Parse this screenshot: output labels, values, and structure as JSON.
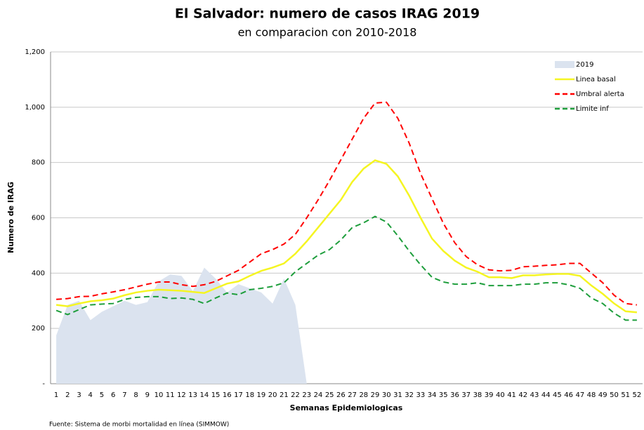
{
  "chart_data": {
    "type": "line",
    "title": "El Salvador: numero de casos IRAG 2019",
    "subtitle": "en comparacion con 2010-2018",
    "x_label": "Semanas Epidemiologicas",
    "y_label": "Numero de IRAG",
    "source": "Fuente: Sistema de morbi mortalidad en línea (SIMMOW)",
    "categories": [
      "1",
      "2",
      "3",
      "4",
      "5",
      "6",
      "7",
      "8",
      "9",
      "10",
      "11",
      "12",
      "13",
      "14",
      "15",
      "16",
      "17",
      "18",
      "19",
      "20",
      "21",
      "22",
      "23",
      "24",
      "25",
      "26",
      "27",
      "28",
      "29",
      "30",
      "31",
      "32",
      "33",
      "34",
      "35",
      "36",
      "37",
      "38",
      "39",
      "40",
      "41",
      "42",
      "43",
      "44",
      "45",
      "46",
      "47",
      "48",
      "49",
      "50",
      "51",
      "52"
    ],
    "ylim": [
      0,
      1200
    ],
    "yticks": [
      {
        "value": 0,
        "label": "-"
      },
      200,
      400,
      600,
      800,
      {
        "value": 1000,
        "label": "1,000"
      },
      {
        "value": 1200,
        "label": "1,200"
      }
    ],
    "grid": true,
    "legend": "upper right",
    "series": [
      {
        "name": "2019",
        "color": "#dbe3ef",
        "style": "area",
        "values": [
          175,
          285,
          300,
          230,
          260,
          280,
          300,
          285,
          295,
          370,
          395,
          390,
          335,
          420,
          380,
          330,
          360,
          345,
          330,
          290,
          380,
          285,
          0,
          null,
          null,
          null,
          null,
          null,
          null,
          null,
          null,
          null,
          null,
          null,
          null,
          null,
          null,
          null,
          null,
          null,
          null,
          null,
          null,
          null,
          null,
          null,
          null,
          null,
          null,
          null,
          null,
          null
        ]
      },
      {
        "name": "Linea basal",
        "color": "#f5f522",
        "style": "solid",
        "values": [
          285,
          280,
          290,
          298,
          302,
          308,
          320,
          330,
          336,
          340,
          338,
          336,
          332,
          328,
          345,
          362,
          370,
          390,
          408,
          420,
          435,
          470,
          515,
          565,
          615,
          665,
          730,
          778,
          808,
          795,
          750,
          680,
          600,
          525,
          480,
          445,
          420,
          405,
          385,
          385,
          382,
          392,
          392,
          395,
          397,
          397,
          390,
          355,
          325,
          290,
          262,
          258
        ]
      },
      {
        "name": "Umbral alerta",
        "color": "#ff0000",
        "style": "dashed",
        "values": [
          305,
          308,
          315,
          316,
          325,
          332,
          340,
          350,
          360,
          368,
          368,
          358,
          352,
          358,
          370,
          390,
          410,
          440,
          470,
          485,
          505,
          540,
          600,
          665,
          735,
          810,
          885,
          960,
          1015,
          1018,
          960,
          870,
          760,
          670,
          580,
          510,
          460,
          430,
          412,
          408,
          410,
          423,
          425,
          428,
          430,
          435,
          435,
          400,
          365,
          320,
          290,
          285
        ]
      },
      {
        "name": "Limite inf",
        "color": "#1e9e3c",
        "style": "dashed",
        "values": [
          265,
          250,
          268,
          285,
          288,
          290,
          305,
          312,
          315,
          315,
          308,
          310,
          305,
          290,
          310,
          328,
          322,
          340,
          345,
          352,
          365,
          405,
          435,
          465,
          485,
          520,
          565,
          582,
          605,
          585,
          535,
          480,
          430,
          385,
          368,
          360,
          360,
          365,
          355,
          355,
          355,
          360,
          360,
          365,
          365,
          358,
          345,
          310,
          290,
          255,
          230,
          230
        ]
      }
    ]
  }
}
